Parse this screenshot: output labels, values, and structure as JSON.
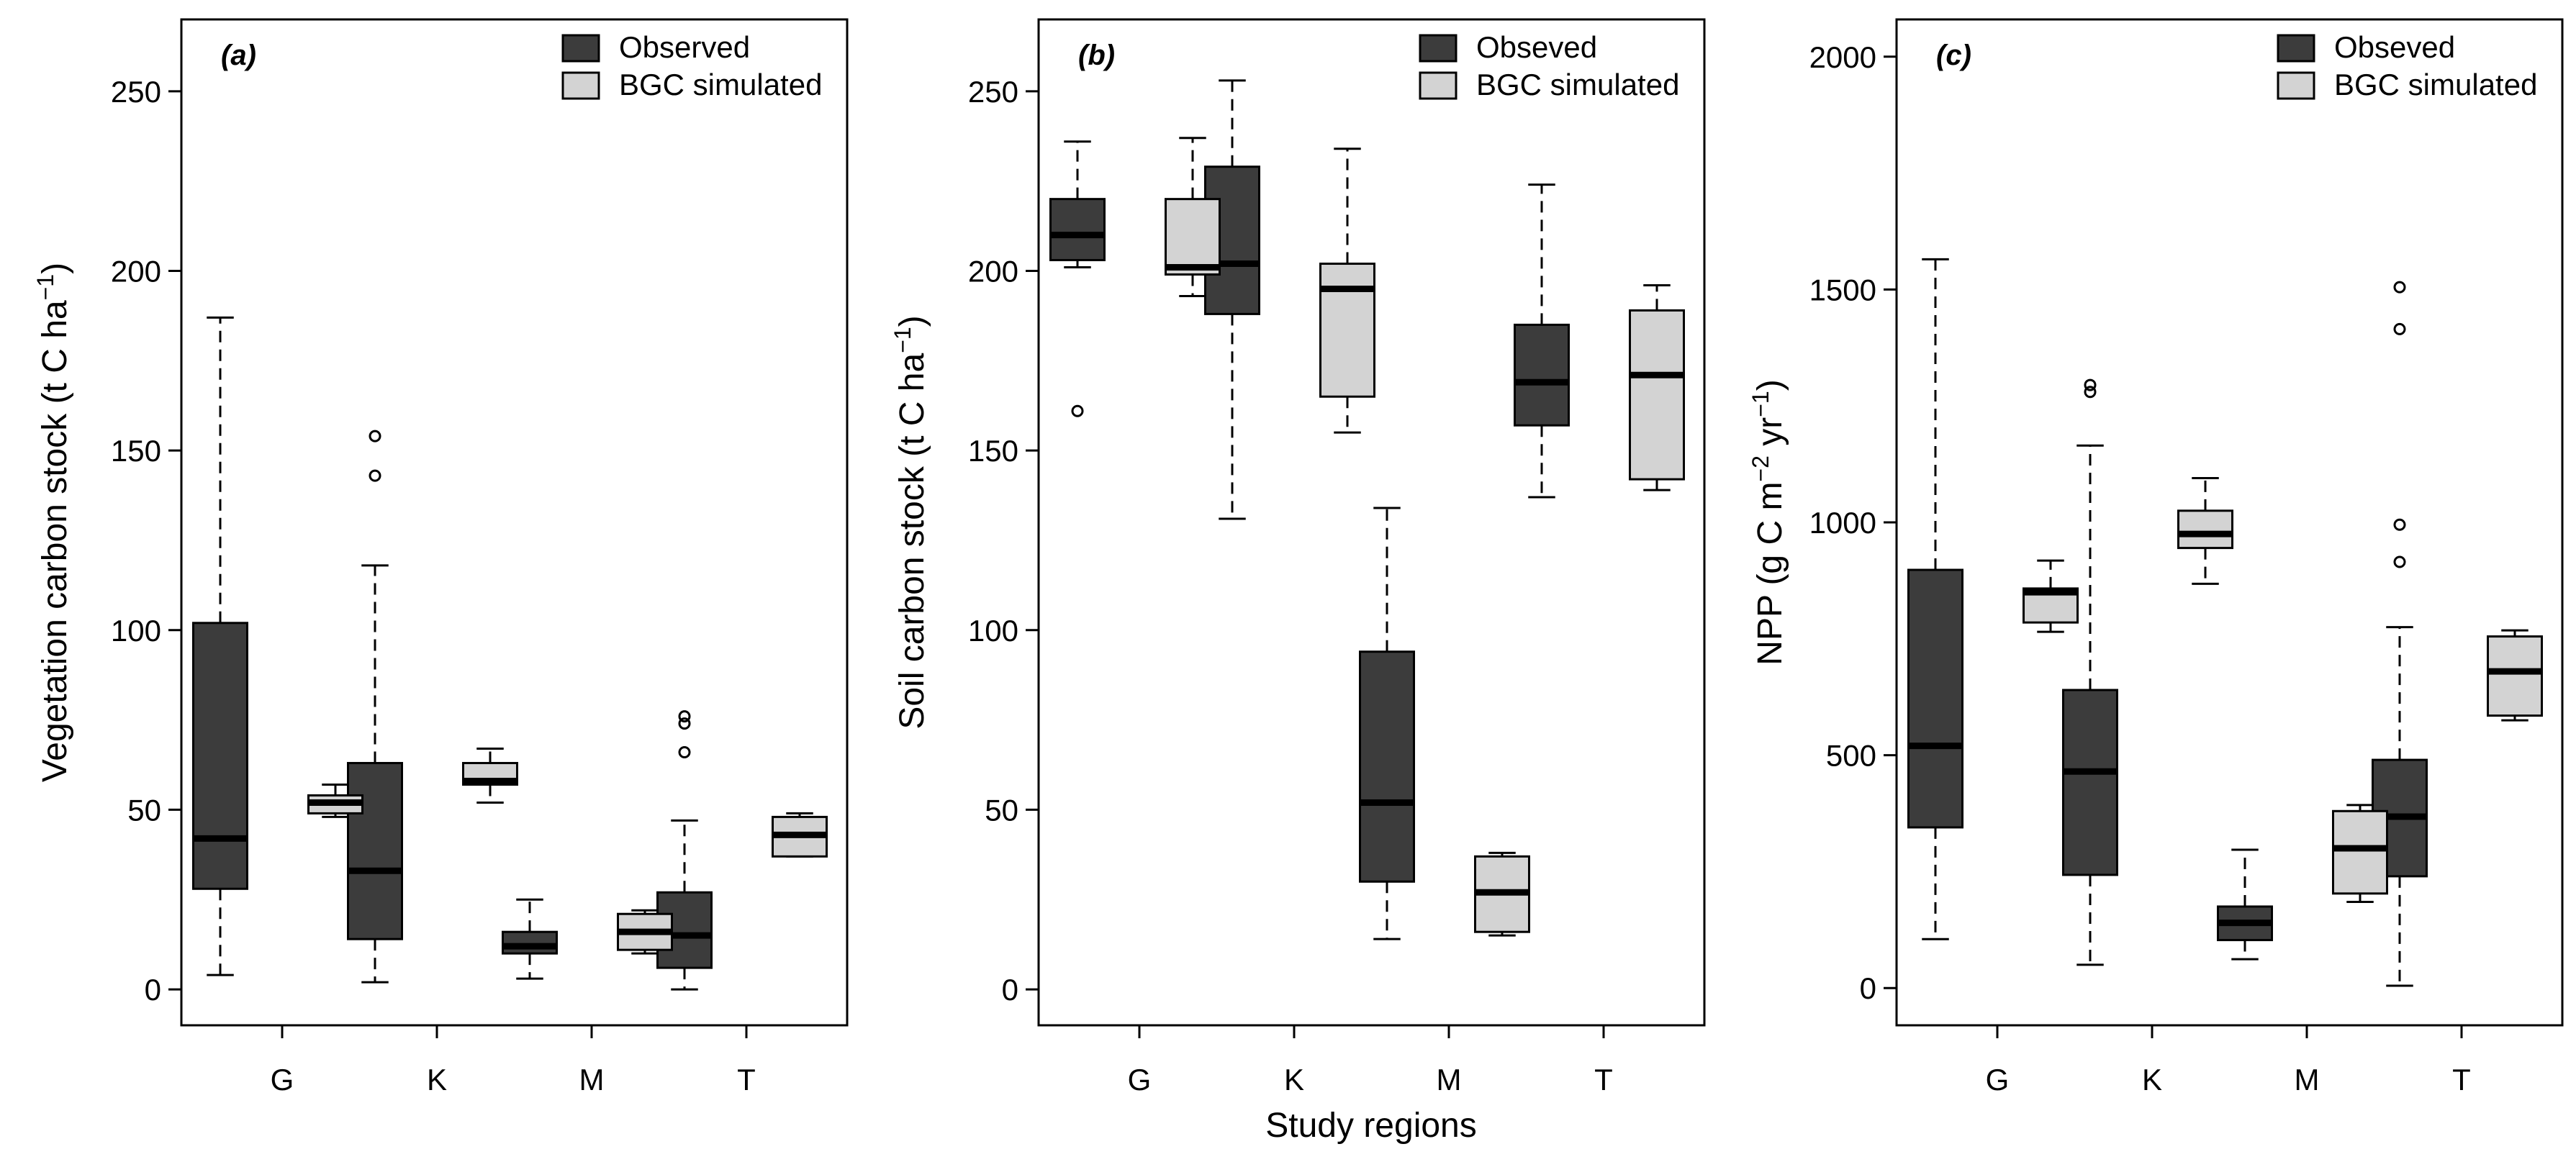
{
  "figure": {
    "xlabel": "Study regions"
  },
  "chart_data": [
    {
      "type": "boxplot",
      "panel_label": "(a)",
      "ylabel": "Vegetation carbon stock",
      "ylabel_unit": {
        "open": "(",
        "base": "t C ha",
        "sup": "−1",
        "close": ")"
      },
      "ylim": [
        -10,
        270
      ],
      "yticks": [
        0,
        50,
        100,
        150,
        200,
        250
      ],
      "categories": [
        "G",
        "K",
        "M",
        "T"
      ],
      "legend": {
        "position": "top-right",
        "entries": [
          "Observed",
          "BGC simulated"
        ]
      },
      "series": [
        {
          "name": "Observed",
          "color": "#3c3c3c",
          "boxes": [
            {
              "category": "G",
              "min": 4,
              "q1": 28,
              "median": 42,
              "q3": 102,
              "max": 187,
              "outliers": []
            },
            {
              "category": "K",
              "min": 2,
              "q1": 14,
              "median": 33,
              "q3": 63,
              "max": 118,
              "outliers": [
                143,
                154
              ]
            },
            {
              "category": "M",
              "min": 3,
              "q1": 10,
              "median": 12,
              "q3": 16,
              "max": 25,
              "outliers": []
            },
            {
              "category": "T",
              "min": 0,
              "q1": 6,
              "median": 15,
              "q3": 27,
              "max": 47,
              "outliers": [
                66,
                74,
                76
              ]
            }
          ]
        },
        {
          "name": "BGC simulated",
          "color": "#d3d3d3",
          "boxes": [
            {
              "category": "G",
              "min": 48,
              "q1": 49,
              "median": 52,
              "q3": 54,
              "max": 57,
              "outliers": []
            },
            {
              "category": "K",
              "min": 52,
              "q1": 57,
              "median": 58,
              "q3": 63,
              "max": 67,
              "outliers": []
            },
            {
              "category": "M",
              "min": 10,
              "q1": 11,
              "median": 16,
              "q3": 21,
              "max": 22,
              "outliers": []
            },
            {
              "category": "T",
              "min": 37,
              "q1": 37,
              "median": 43,
              "q3": 48,
              "max": 49,
              "outliers": []
            }
          ]
        }
      ]
    },
    {
      "type": "boxplot",
      "panel_label": "(b)",
      "ylabel": "Soil carbon stock",
      "ylabel_unit": {
        "open": "(",
        "base": "t C ha",
        "sup": "−1",
        "close": ")"
      },
      "ylim": [
        -10,
        270
      ],
      "yticks": [
        0,
        50,
        100,
        150,
        200,
        250
      ],
      "categories": [
        "G",
        "K",
        "M",
        "T"
      ],
      "legend": {
        "position": "top-right",
        "entries": [
          "Obseved",
          "BGC simulated"
        ]
      },
      "series": [
        {
          "name": "Obseved",
          "color": "#3c3c3c",
          "boxes": [
            {
              "category": "G",
              "min": 201,
              "q1": 203,
              "median": 210,
              "q3": 220,
              "max": 236,
              "outliers": [
                161
              ]
            },
            {
              "category": "K",
              "min": 131,
              "q1": 188,
              "median": 202,
              "q3": 229,
              "max": 253,
              "outliers": []
            },
            {
              "category": "M",
              "min": 14,
              "q1": 30,
              "median": 52,
              "q3": 94,
              "max": 134,
              "outliers": []
            },
            {
              "category": "T",
              "min": 137,
              "q1": 157,
              "median": 169,
              "q3": 185,
              "max": 224,
              "outliers": []
            }
          ]
        },
        {
          "name": "BGC simulated",
          "color": "#d3d3d3",
          "boxes": [
            {
              "category": "G",
              "min": 193,
              "q1": 199,
              "median": 201,
              "q3": 220,
              "max": 237,
              "outliers": []
            },
            {
              "category": "K",
              "min": 155,
              "q1": 165,
              "median": 195,
              "q3": 202,
              "max": 234,
              "outliers": []
            },
            {
              "category": "M",
              "min": 15,
              "q1": 16,
              "median": 27,
              "q3": 37,
              "max": 38,
              "outliers": []
            },
            {
              "category": "T",
              "min": 139,
              "q1": 142,
              "median": 171,
              "q3": 189,
              "max": 196,
              "outliers": []
            }
          ]
        }
      ]
    },
    {
      "type": "boxplot",
      "panel_label": "(c)",
      "ylabel": "NPP",
      "ylabel_unit": {
        "open": "(g C m",
        "sup": "−2",
        "mid": " yr",
        "sup2": "−1",
        "close": ")"
      },
      "ylim": [
        -80,
        2080
      ],
      "yticks": [
        0,
        500,
        1000,
        1500,
        2000
      ],
      "categories": [
        "G",
        "K",
        "M",
        "T"
      ],
      "legend": {
        "position": "top-right",
        "entries": [
          "Obseved",
          "BGC simulated"
        ]
      },
      "series": [
        {
          "name": "Obseved",
          "color": "#3c3c3c",
          "boxes": [
            {
              "category": "G",
              "min": 105,
              "q1": 345,
              "median": 520,
              "q3": 898,
              "max": 1565,
              "outliers": []
            },
            {
              "category": "K",
              "min": 50,
              "q1": 243,
              "median": 465,
              "q3": 640,
              "max": 1165,
              "outliers": [
                1280,
                1295
              ]
            },
            {
              "category": "M",
              "min": 62,
              "q1": 103,
              "median": 140,
              "q3": 175,
              "max": 297,
              "outliers": []
            },
            {
              "category": "T",
              "min": 5,
              "q1": 240,
              "median": 368,
              "q3": 490,
              "max": 775,
              "outliers": [
                915,
                995,
                1415,
                1505
              ]
            }
          ]
        },
        {
          "name": "BGC simulated",
          "color": "#d3d3d3",
          "boxes": [
            {
              "category": "G",
              "min": 765,
              "q1": 785,
              "median": 850,
              "q3": 858,
              "max": 918,
              "outliers": []
            },
            {
              "category": "K",
              "min": 868,
              "q1": 945,
              "median": 975,
              "q3": 1025,
              "max": 1095,
              "outliers": []
            },
            {
              "category": "M",
              "min": 185,
              "q1": 203,
              "median": 300,
              "q3": 380,
              "max": 393,
              "outliers": []
            },
            {
              "category": "T",
              "min": 575,
              "q1": 585,
              "median": 680,
              "q3": 755,
              "max": 768,
              "outliers": []
            }
          ]
        }
      ]
    }
  ]
}
